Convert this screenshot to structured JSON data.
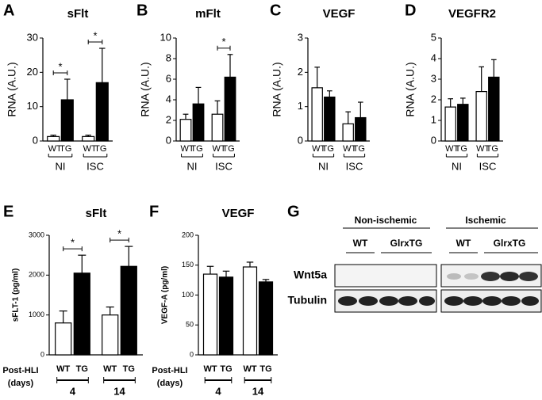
{
  "chart_data": [
    {
      "panel": "A",
      "type": "bar",
      "title": "sFlt",
      "ylabel": "RNA (A.U.)",
      "categories": [
        "WT",
        "TG",
        "WT",
        "TG"
      ],
      "groups": [
        "NI",
        "ISC"
      ],
      "values": [
        1.3,
        12,
        1.3,
        17
      ],
      "errors": [
        0.4,
        6,
        0.4,
        10
      ],
      "colors": [
        "#ffffff",
        "#000000",
        "#ffffff",
        "#000000"
      ],
      "significance": [
        "*",
        "*"
      ],
      "ylim": [
        0,
        30
      ],
      "yticks": [
        0,
        10,
        20,
        30
      ]
    },
    {
      "panel": "B",
      "type": "bar",
      "title": "mFlt",
      "ylabel": "RNA (A.U.)",
      "categories": [
        "WT",
        "TG",
        "WT",
        "TG"
      ],
      "groups": [
        "NI",
        "ISC"
      ],
      "values": [
        2.1,
        3.6,
        2.6,
        6.2
      ],
      "errors": [
        0.5,
        1.6,
        1.3,
        2.2
      ],
      "colors": [
        "#ffffff",
        "#000000",
        "#ffffff",
        "#000000"
      ],
      "significance": [
        null,
        "*"
      ],
      "ylim": [
        0,
        10
      ],
      "yticks": [
        0,
        2,
        4,
        6,
        8,
        10
      ]
    },
    {
      "panel": "C",
      "type": "bar",
      "title": "VEGF",
      "ylabel": "RNA (A.U.)",
      "categories": [
        "WT",
        "TG",
        "WT",
        "TG"
      ],
      "groups": [
        "NI",
        "ISC"
      ],
      "values": [
        1.55,
        1.28,
        0.5,
        0.68
      ],
      "errors": [
        0.6,
        0.18,
        0.35,
        0.45
      ],
      "colors": [
        "#ffffff",
        "#000000",
        "#ffffff",
        "#000000"
      ],
      "ylim": [
        0,
        3
      ],
      "yticks": [
        0,
        1,
        2,
        3
      ]
    },
    {
      "panel": "D",
      "type": "bar",
      "title": "VEGFR2",
      "ylabel": "RNA (A.U.)",
      "categories": [
        "WT",
        "TG",
        "WT",
        "TG"
      ],
      "groups": [
        "NI",
        "ISC"
      ],
      "values": [
        1.65,
        1.78,
        2.4,
        3.1
      ],
      "errors": [
        0.4,
        0.3,
        1.2,
        0.85
      ],
      "colors": [
        "#ffffff",
        "#000000",
        "#ffffff",
        "#000000"
      ],
      "ylim": [
        0,
        5
      ],
      "yticks": [
        0,
        1,
        2,
        3,
        4,
        5
      ]
    },
    {
      "panel": "E",
      "type": "bar",
      "title": "sFlt",
      "ylabel": "sFLT-1 (pg/ml)",
      "xlabel": [
        "Post-HLI",
        "(days)"
      ],
      "categories": [
        "WT",
        "TG",
        "WT",
        "TG"
      ],
      "groups": [
        "4",
        "14"
      ],
      "values": [
        800,
        2050,
        1000,
        2220
      ],
      "errors": [
        300,
        450,
        200,
        500
      ],
      "colors": [
        "#ffffff",
        "#000000",
        "#ffffff",
        "#000000"
      ],
      "significance": [
        "*",
        "*"
      ],
      "ylim": [
        0,
        3000
      ],
      "yticks": [
        0,
        1000,
        2000,
        3000
      ]
    },
    {
      "panel": "F",
      "type": "bar",
      "title": "VEGF",
      "ylabel": "VEGF-A (pg/ml)",
      "xlabel": [
        "Post-HLI",
        "(days)"
      ],
      "categories": [
        "WT",
        "TG",
        "WT",
        "TG"
      ],
      "groups": [
        "4",
        "14"
      ],
      "values": [
        135,
        130,
        147,
        122
      ],
      "errors": [
        13,
        10,
        8,
        4
      ],
      "colors": [
        "#ffffff",
        "#000000",
        "#ffffff",
        "#000000"
      ],
      "ylim": [
        0,
        200
      ],
      "yticks": [
        0,
        50,
        100,
        150,
        200
      ]
    }
  ],
  "blot": {
    "panel": "G",
    "groups": [
      "Non-ischemic",
      "Ischemic"
    ],
    "lanes": [
      "WT",
      "GlrxTG",
      "WT",
      "GlrxTG"
    ],
    "rows": [
      "Wnt5a",
      "Tubulin"
    ]
  }
}
